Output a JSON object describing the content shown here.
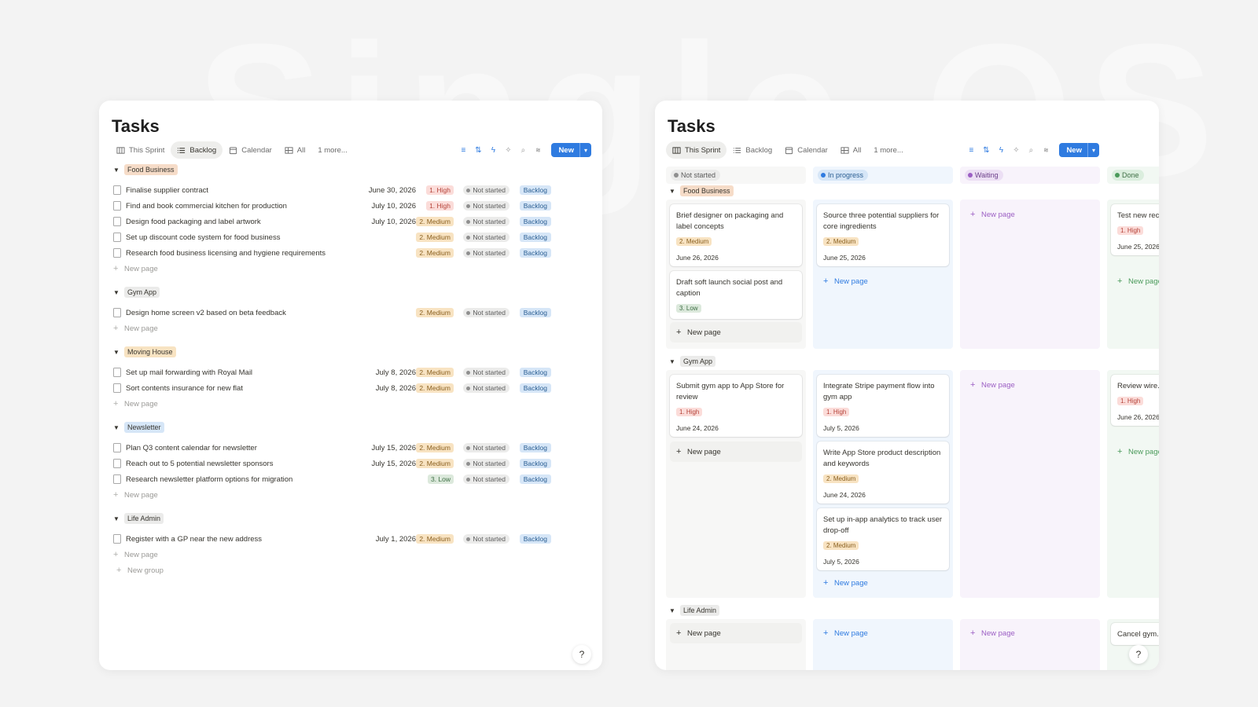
{
  "left": {
    "title": "Tasks",
    "tabs": [
      {
        "label": "This Sprint",
        "icon": "board-icon",
        "active": false
      },
      {
        "label": "Backlog",
        "icon": "list-icon",
        "active": true
      },
      {
        "label": "Calendar",
        "icon": "calendar-icon",
        "active": false
      },
      {
        "label": "All",
        "icon": "table-icon",
        "active": false
      },
      {
        "label": "1 more...",
        "icon": "",
        "active": false
      }
    ],
    "new_label": "New",
    "new_page": "New page",
    "new_group": "New group",
    "groups": [
      {
        "name": "Food Business",
        "color": "#f6dcc8",
        "rows": [
          {
            "name": "Finalise supplier contract",
            "date": "June 30, 2026",
            "priority": "1. High",
            "status": "Not started",
            "sprint": "Backlog"
          },
          {
            "name": "Find and book commercial kitchen for production",
            "date": "July 10, 2026",
            "priority": "1. High",
            "status": "Not started",
            "sprint": "Backlog"
          },
          {
            "name": "Design food packaging and label artwork",
            "date": "July 10, 2026",
            "priority": "2. Medium",
            "status": "Not started",
            "sprint": "Backlog"
          },
          {
            "name": "Set up discount code system for food business",
            "date": "",
            "priority": "2. Medium",
            "status": "Not started",
            "sprint": "Backlog"
          },
          {
            "name": "Research food business licensing and hygiene requirements",
            "date": "",
            "priority": "2. Medium",
            "status": "Not started",
            "sprint": "Backlog"
          }
        ]
      },
      {
        "name": "Gym App",
        "color": "#ebebea",
        "rows": [
          {
            "name": "Design home screen v2 based on beta feedback",
            "date": "",
            "priority": "2. Medium",
            "status": "Not started",
            "sprint": "Backlog"
          }
        ]
      },
      {
        "name": "Moving House",
        "color": "#f8e3c2",
        "rows": [
          {
            "name": "Set up mail forwarding with Royal Mail",
            "date": "July 8, 2026",
            "priority": "2. Medium",
            "status": "Not started",
            "sprint": "Backlog"
          },
          {
            "name": "Sort contents insurance for new flat",
            "date": "July 8, 2026",
            "priority": "2. Medium",
            "status": "Not started",
            "sprint": "Backlog"
          }
        ]
      },
      {
        "name": "Newsletter",
        "color": "#d6e6f7",
        "rows": [
          {
            "name": "Plan Q3 content calendar for newsletter",
            "date": "July 15, 2026",
            "priority": "2. Medium",
            "status": "Not started",
            "sprint": "Backlog"
          },
          {
            "name": "Reach out to 5 potential newsletter sponsors",
            "date": "July 15, 2026",
            "priority": "2. Medium",
            "status": "Not started",
            "sprint": "Backlog"
          },
          {
            "name": "Research newsletter platform options for migration",
            "date": "",
            "priority": "3. Low",
            "status": "Not started",
            "sprint": "Backlog"
          }
        ]
      },
      {
        "name": "Life Admin",
        "color": "#ebebea",
        "rows": [
          {
            "name": "Register with a GP near the new address",
            "date": "July 1, 2026",
            "priority": "2. Medium",
            "status": "Not started",
            "sprint": "Backlog"
          }
        ]
      }
    ]
  },
  "right": {
    "title": "Tasks",
    "tabs": [
      {
        "label": "This Sprint",
        "icon": "board-icon",
        "active": true
      },
      {
        "label": "Backlog",
        "icon": "list-icon",
        "active": false
      },
      {
        "label": "Calendar",
        "icon": "calendar-icon",
        "active": false
      },
      {
        "label": "All",
        "icon": "table-icon",
        "active": false
      },
      {
        "label": "1 more...",
        "icon": "",
        "active": false
      }
    ],
    "new_label": "New",
    "new_page": "New page",
    "columns": [
      {
        "label": "Not started",
        "dot": "#8f8f8f",
        "chip_bg": "#ebebea",
        "text": "#5a5a5a"
      },
      {
        "label": "In progress",
        "dot": "#2f7be0",
        "chip_bg": "#d6e6f7",
        "text": "#2b5f93"
      },
      {
        "label": "Waiting",
        "dot": "#9c5fc4",
        "chip_bg": "#ecdff4",
        "text": "#6c3f8a"
      },
      {
        "label": "Done",
        "dot": "#4a9a5a",
        "chip_bg": "#dbeede",
        "text": "#3f6f45"
      }
    ],
    "groups": [
      {
        "name": "Food Business",
        "color": "#f6dcc8"
      },
      {
        "name": "Gym App",
        "color": "#ebebea"
      },
      {
        "name": "Life Admin",
        "color": "#ebebea"
      }
    ],
    "cards": {
      "food_ns_1": {
        "title": "Brief designer on packaging and label concepts",
        "priority": "2. Medium",
        "date": "June 26, 2026"
      },
      "food_ns_2": {
        "title": "Draft soft launch social post and caption",
        "priority": "3. Low",
        "date": ""
      },
      "food_ip_1": {
        "title": "Source three potential suppliers for core ingredients",
        "priority": "2. Medium",
        "date": "June 25, 2026"
      },
      "food_dn_1": {
        "title": "Test new rec... soft launch",
        "priority": "1. High",
        "date": "June 25, 2026"
      },
      "gym_ns_1": {
        "title": "Submit gym app to App Store for review",
        "priority": "1. High",
        "date": "June 24, 2026"
      },
      "gym_ip_1": {
        "title": "Integrate Stripe payment flow into gym app",
        "priority": "1. High",
        "date": "July 5, 2026"
      },
      "gym_ip_2": {
        "title": "Write App Store product description and keywords",
        "priority": "2. Medium",
        "date": "June 24, 2026"
      },
      "gym_ip_3": {
        "title": "Set up in-app analytics to track user drop-off",
        "priority": "2. Medium",
        "date": "July 5, 2026"
      },
      "gym_dn_1": {
        "title": "Review wire... onboarding",
        "priority": "1. High",
        "date": "June 26, 2026"
      },
      "life_dn_1": {
        "title": "Cancel gym... before...",
        "priority": "",
        "date": ""
      }
    }
  }
}
